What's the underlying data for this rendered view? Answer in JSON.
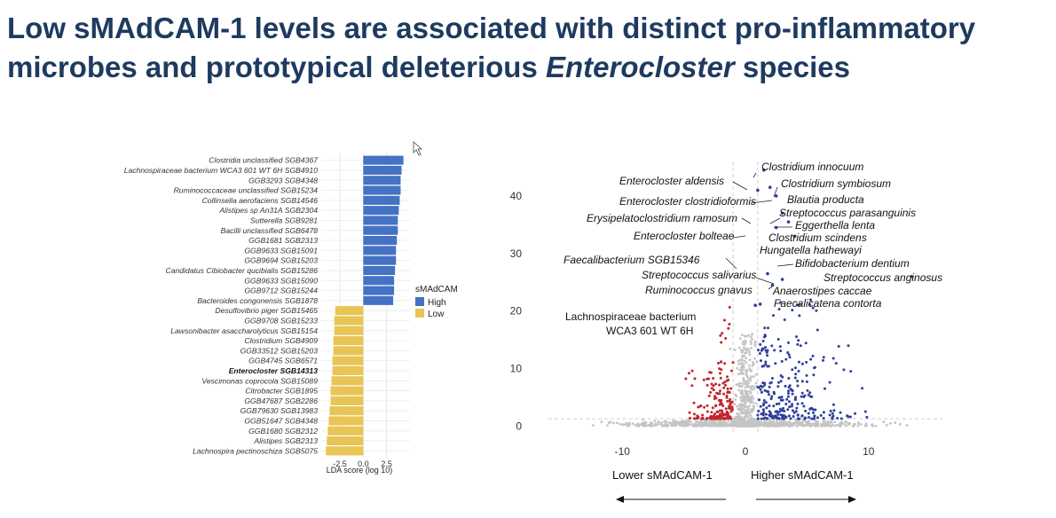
{
  "slide": {
    "title_part1": "Low sMAdCAM-1 levels are associated with distinct pro-inflammatory microbes and prototypical deleterious ",
    "title_italic": "Enterocloster",
    "title_part2": " species"
  },
  "chart_data": [
    {
      "type": "bar",
      "orientation": "horizontal",
      "title": "",
      "xlabel": "LDA score (log 10)",
      "ylabel": "",
      "xlim": [
        -4.5,
        5.0
      ],
      "x_ticks": [
        "-2.5",
        "0.0",
        "2.5"
      ],
      "grid": true,
      "legend": {
        "title": "sMAdCAM",
        "placement": "right",
        "entries": [
          "High",
          "Low"
        ]
      },
      "colors": {
        "High": "#4472c4",
        "Low": "#e8c554"
      },
      "bold_category": "Enterocloster SGB14313",
      "categories": [
        "Clostridia unclassified SGB4367",
        "Lachnospiraceae bacterium WCA3 601 WT 6H SGB4910",
        "GGB3293 SGB4348",
        "Ruminococcaceae unclassified SGB15234",
        "Collinsella aerofaciens SGB14546",
        "Alistipes sp An31A SGB2304",
        "Sutterella SGB9281",
        "Bacilli unclassified SGB6478",
        "GGB1681 SGB2313",
        "GGB9633 SGB15091",
        "GGB9694 SGB15203",
        "Candidatus Cibiobacter qucibialis SGB15286",
        "GGB9633 SGB15090",
        "GGB9712 SGB15244",
        "Bacteroides congonensis SGB1878",
        "Desulfovibrio piger SGB15465",
        "GGB9708 SGB15233",
        "Lawsonibacter asaccharolyticus SGB15154",
        "Clostridium SGB4909",
        "GGB33512 SGB15203",
        "GGB4745 SGB6571",
        "Enterocloster SGB14313",
        "Vescimonas coprocola SGB15089",
        "Citrobacter SGB1895",
        "GGB47687 SGB2286",
        "GGB79630 SGB13983",
        "GGB51647 SGB4348",
        "GGB1680 SGB2312",
        "Alistipes SGB2313",
        "Lachnospira pectinoschiza SGB5075"
      ],
      "groups": [
        "High",
        "High",
        "High",
        "High",
        "High",
        "High",
        "High",
        "High",
        "High",
        "High",
        "High",
        "High",
        "High",
        "High",
        "High",
        "Low",
        "Low",
        "Low",
        "Low",
        "Low",
        "Low",
        "Low",
        "Low",
        "Low",
        "Low",
        "Low",
        "Low",
        "Low",
        "Low",
        "Low"
      ],
      "values": [
        4.3,
        4.1,
        4.0,
        4.0,
        3.9,
        3.8,
        3.7,
        3.7,
        3.6,
        3.5,
        3.5,
        3.4,
        3.3,
        3.3,
        3.2,
        -3.0,
        -3.1,
        -3.1,
        -3.2,
        -3.2,
        -3.3,
        -3.3,
        -3.4,
        -3.5,
        -3.5,
        -3.6,
        -3.7,
        -3.8,
        -3.9,
        -4.0
      ]
    },
    {
      "type": "scatter",
      "subtype": "volcano",
      "title": "",
      "xlabel": "",
      "ylabel": "",
      "xlim": [
        -16,
        16
      ],
      "ylim": [
        -1,
        46
      ],
      "x_ticks": [
        -10,
        0,
        10
      ],
      "y_ticks": [
        0,
        10,
        20,
        30,
        40
      ],
      "colors": {
        "lower": "#c0262d",
        "higher": "#2e3f9a",
        "ns": "#c4c4c4",
        "threshold": "#cfcfcf"
      },
      "threshold_y": 1.3,
      "annotations": [
        "Clostridium innocuum",
        "Enterocloster aldensis",
        "Clostridium symbiosum",
        "Enterocloster clostridioformis",
        "Blautia producta",
        "Streptococcus parasanguinis",
        "Erysipelatoclostridium ramosum",
        "Eggerthella lenta",
        "Enterocloster bolteae",
        "Clostridium scindens",
        "Hungatella hathewayi",
        "Faecalibacterium SGB15346",
        "Bifidobacterium dentium",
        "Streptococcus salivarius",
        "Streptococcus anginosus",
        "Ruminococcus gnavus",
        "Anaerostipes caccae",
        "Faecalicatena contorta",
        "Lachnospiraceae bacterium",
        "WCA3 601 WT 6H"
      ],
      "highlighted_points": [
        [
          1.5,
          44.5
        ],
        [
          1.0,
          41.0
        ],
        [
          2.0,
          41.5
        ],
        [
          2.5,
          40.0
        ],
        [
          3.0,
          37.0
        ],
        [
          2.5,
          34.5
        ],
        [
          3.5,
          35.5
        ],
        [
          4.0,
          33.0
        ],
        [
          1.8,
          26.5
        ],
        [
          3.0,
          25.5
        ],
        [
          2.2,
          24.5
        ],
        [
          13.5,
          26.0
        ],
        [
          0.8,
          21.0
        ],
        [
          1.2,
          21.2
        ]
      ],
      "direction_labels": [
        "Lower sMAdCAM-1",
        "Higher sMAdCAM-1"
      ]
    }
  ]
}
